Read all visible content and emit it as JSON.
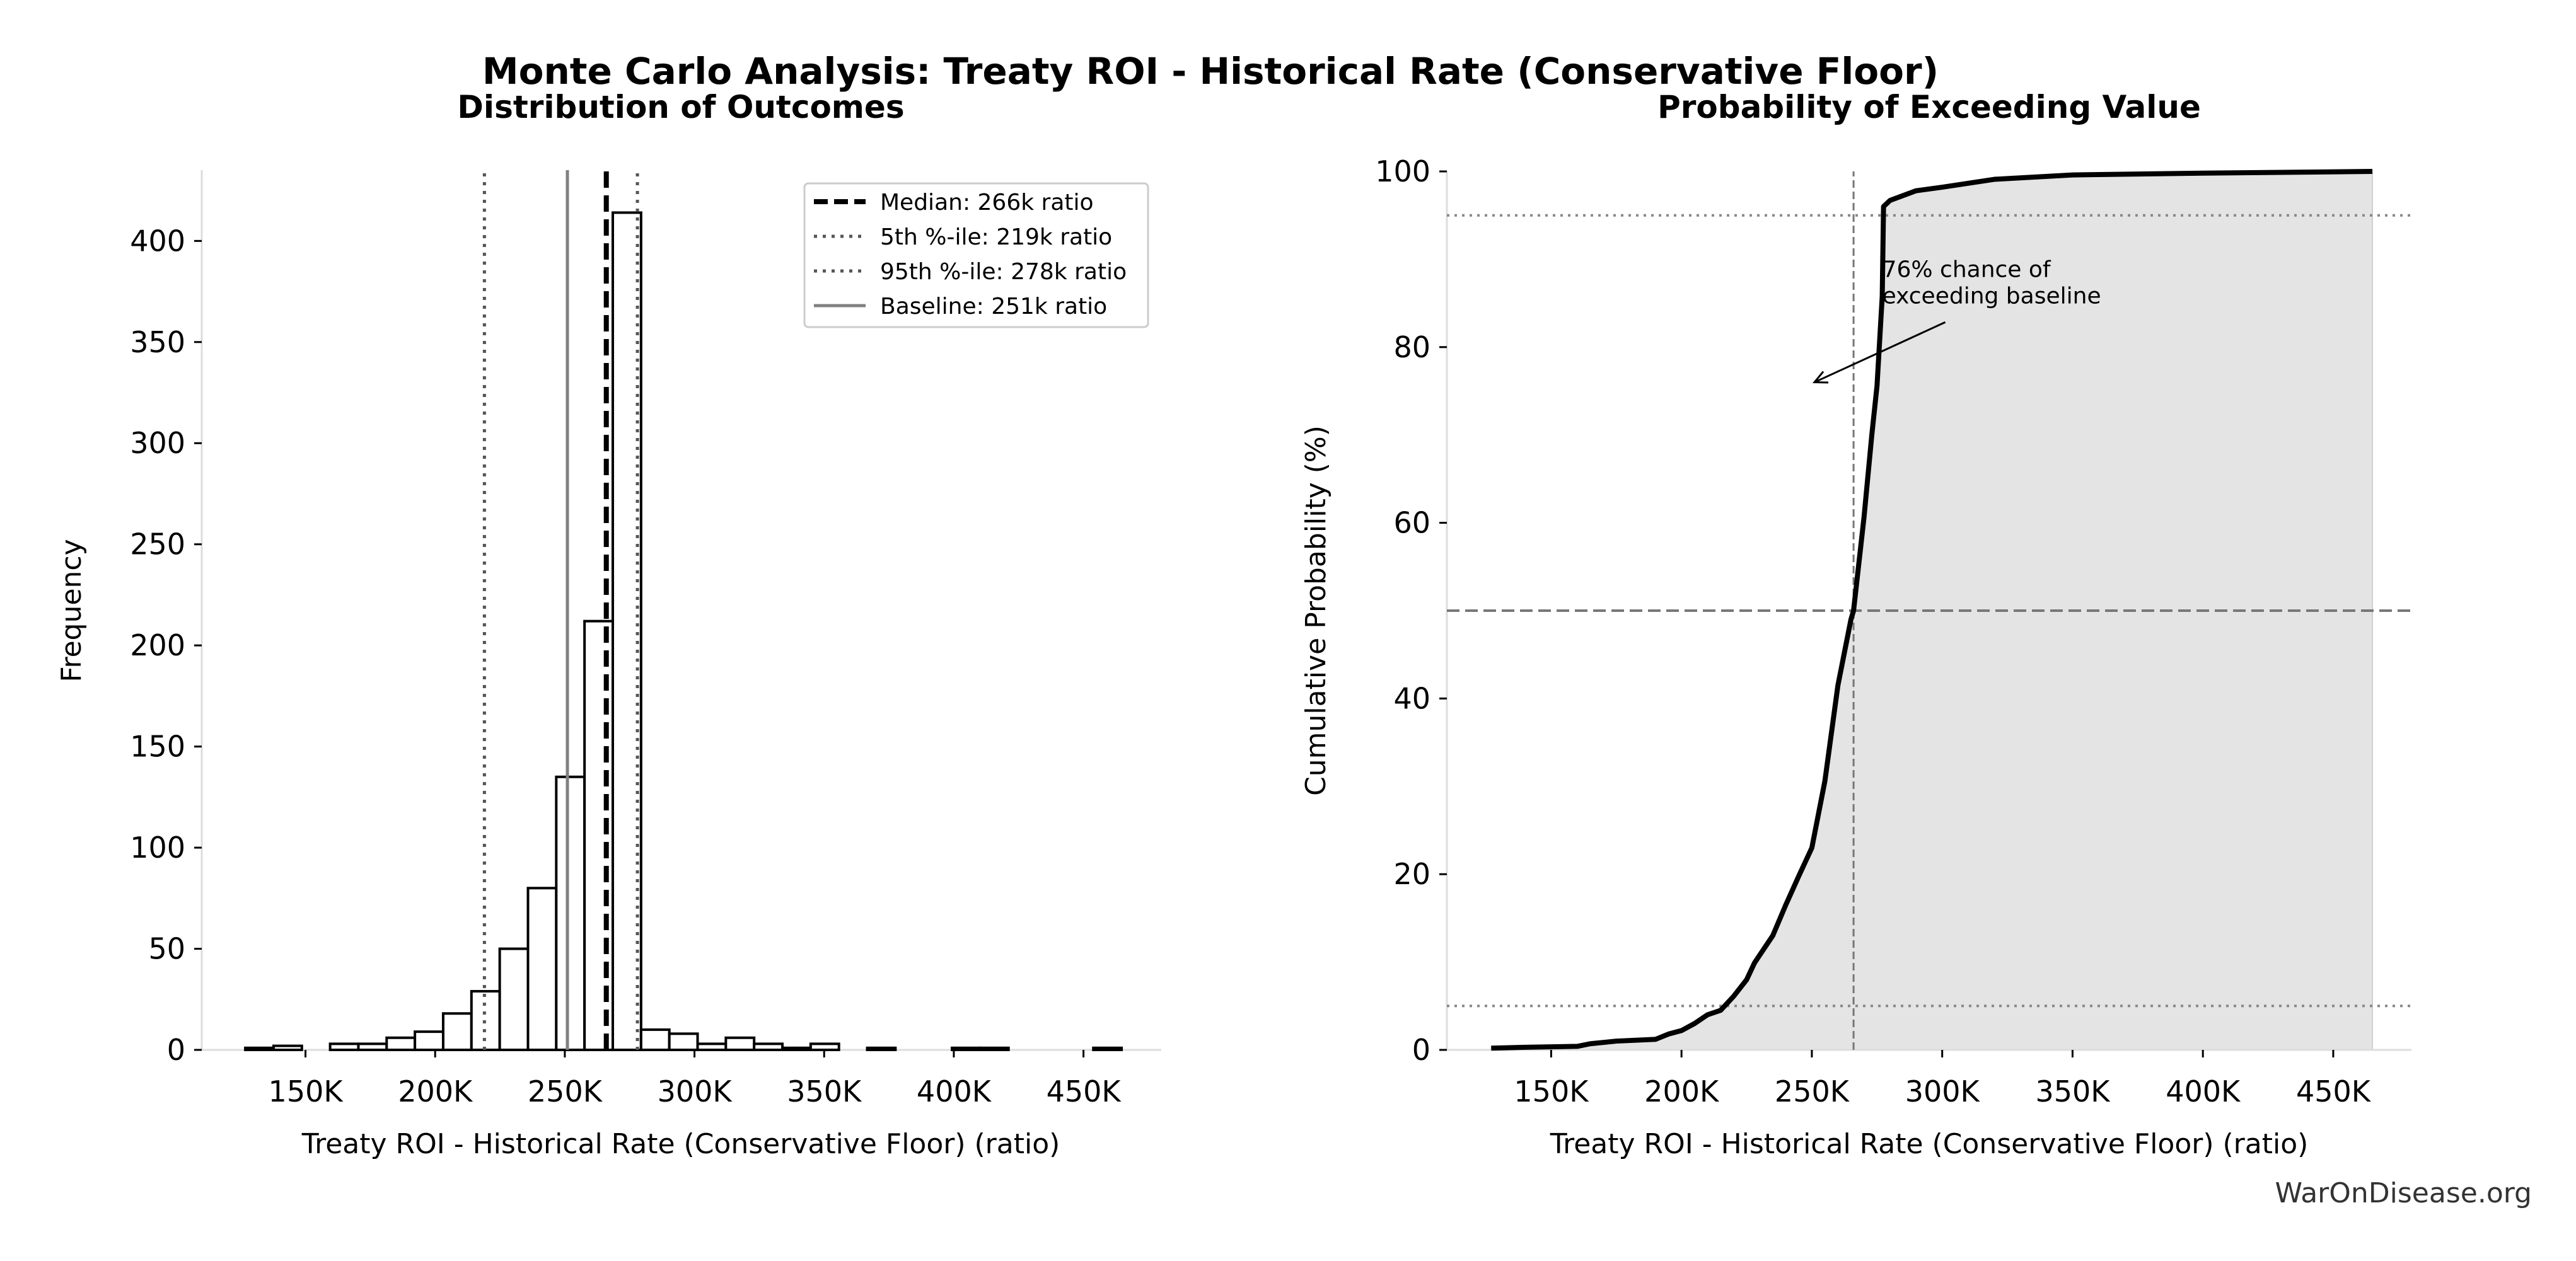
{
  "title": "Monte Carlo Analysis: Treaty ROI - Historical Rate (Conservative Floor)",
  "watermark": "WarOnDisease.org",
  "colors": {
    "fill": "#e4e4e4",
    "line": "#000000",
    "baseline": "#808080",
    "percentile": "#555555",
    "spine": "#dddddd",
    "watermark": "#333333"
  },
  "chart_data": [
    {
      "type": "bar",
      "subtitle": "Distribution of Outcomes",
      "xlabel": "Treaty ROI - Historical Rate (Conservative Floor) (ratio)",
      "ylabel": "Frequency",
      "xlim": [
        110,
        480
      ],
      "ylim": [
        0,
        435
      ],
      "xticks": [
        150,
        200,
        250,
        300,
        350,
        400,
        450
      ],
      "xtick_labels": [
        "150K",
        "200K",
        "250K",
        "300K",
        "350K",
        "400K",
        "450K"
      ],
      "yticks": [
        0,
        50,
        100,
        150,
        200,
        250,
        300,
        350,
        400
      ],
      "ytick_labels": [
        "0",
        "50",
        "100",
        "150",
        "200",
        "250",
        "300",
        "350",
        "400"
      ],
      "bin_start": 126.8,
      "bin_width": 10.9,
      "values": [
        1,
        2,
        0,
        3,
        3,
        6,
        9,
        18,
        29,
        50,
        80,
        135,
        212,
        414,
        10,
        8,
        3,
        6,
        3,
        1,
        3,
        0,
        1,
        0,
        0,
        1,
        1,
        0,
        0,
        0,
        1
      ],
      "grid": false,
      "legend_position": "upper right",
      "reference_lines": [
        {
          "label": "Median: 266k ratio",
          "x": 266,
          "style": "dashed",
          "color": "#000000"
        },
        {
          "label": "5th %-ile: 219k ratio",
          "x": 219,
          "style": "dotted",
          "color": "#555555"
        },
        {
          "label": "95th %-ile: 278k ratio",
          "x": 278,
          "style": "dotted",
          "color": "#555555"
        },
        {
          "label": "Baseline: 251k ratio",
          "x": 251,
          "style": "solid",
          "color": "#808080"
        }
      ]
    },
    {
      "type": "area",
      "subtitle": "Probability of Exceeding Value",
      "xlabel": "Treaty ROI - Historical Rate (Conservative Floor) (ratio)",
      "ylabel": "Cumulative Probability (%)",
      "xlim": [
        110,
        480
      ],
      "ylim": [
        0,
        100
      ],
      "xticks": [
        150,
        200,
        250,
        300,
        350,
        400,
        450
      ],
      "xtick_labels": [
        "150K",
        "200K",
        "250K",
        "300K",
        "350K",
        "400K",
        "450K"
      ],
      "yticks": [
        0,
        20,
        40,
        60,
        80,
        100
      ],
      "ytick_labels": [
        "0",
        "20",
        "40",
        "60",
        "80",
        "100"
      ],
      "grid": false,
      "x": [
        127,
        140,
        160,
        165,
        175,
        190,
        195,
        200,
        205,
        210,
        215,
        220,
        225,
        228,
        235,
        240,
        245,
        250,
        255,
        260,
        265,
        266,
        270,
        273,
        275,
        277,
        277.5,
        280,
        290,
        300,
        320,
        350,
        400,
        465
      ],
      "y": [
        0.2,
        0.3,
        0.4,
        0.7,
        1.0,
        1.2,
        1.8,
        2.2,
        3.0,
        4.0,
        4.5,
        6.1,
        8.0,
        9.9,
        13.0,
        16.5,
        19.8,
        23.0,
        30.6,
        41.5,
        49.0,
        50.0,
        60.6,
        70.0,
        75.6,
        85.8,
        96.0,
        96.7,
        97.8,
        98.2,
        99.1,
        99.6,
        99.8,
        100
      ],
      "hlines": [
        {
          "y": 5,
          "style": "dotted"
        },
        {
          "y": 50,
          "style": "dashed"
        },
        {
          "y": 95,
          "style": "dotted"
        }
      ],
      "vlines": [
        {
          "x": 266,
          "style": "dashed"
        }
      ],
      "annotation": {
        "line1": "76% chance of",
        "line2": "exceeding baseline",
        "xy": [
          251,
          76
        ],
        "xytext": [
          277,
          88
        ]
      }
    }
  ]
}
